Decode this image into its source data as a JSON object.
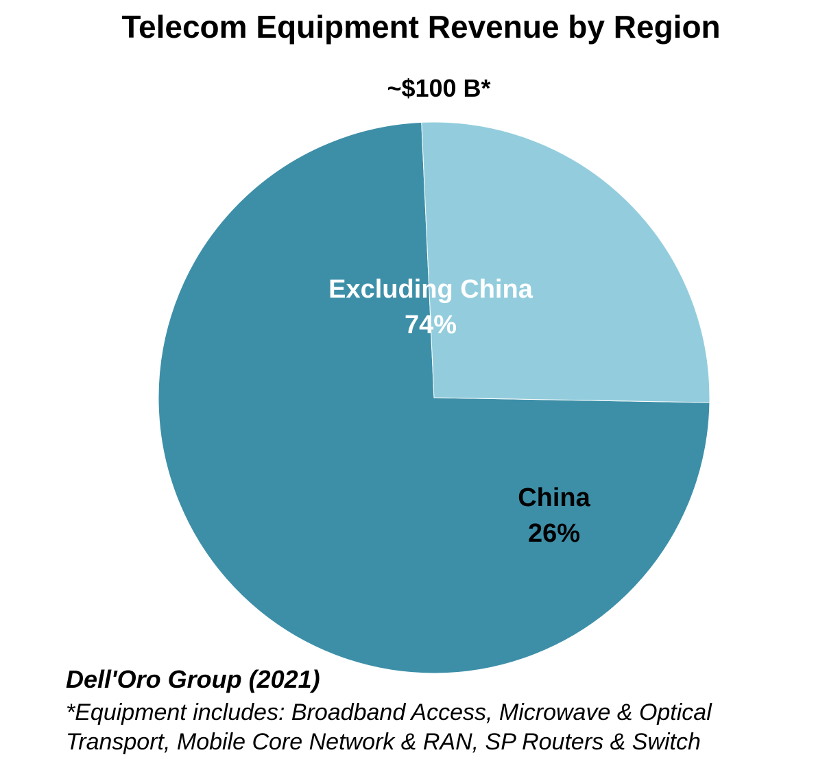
{
  "chart_data": {
    "type": "pie",
    "title": "Telecom Equipment Revenue by Region",
    "subtitle": "~$100 B*",
    "slices": [
      {
        "label": "Excluding China",
        "value_label": "74%",
        "value": 74,
        "color": "#3d8fa8",
        "text_color": "#ffffff"
      },
      {
        "label": "China",
        "value_label": "26%",
        "value": 26,
        "color": "#93cddd",
        "text_color": "#000000"
      }
    ]
  },
  "source": "Dell'Oro Group (2021)",
  "footnote": "*Equipment includes: Broadband Access, Microwave & Optical Transport, Mobile Core Network & RAN, SP Routers & Switch"
}
